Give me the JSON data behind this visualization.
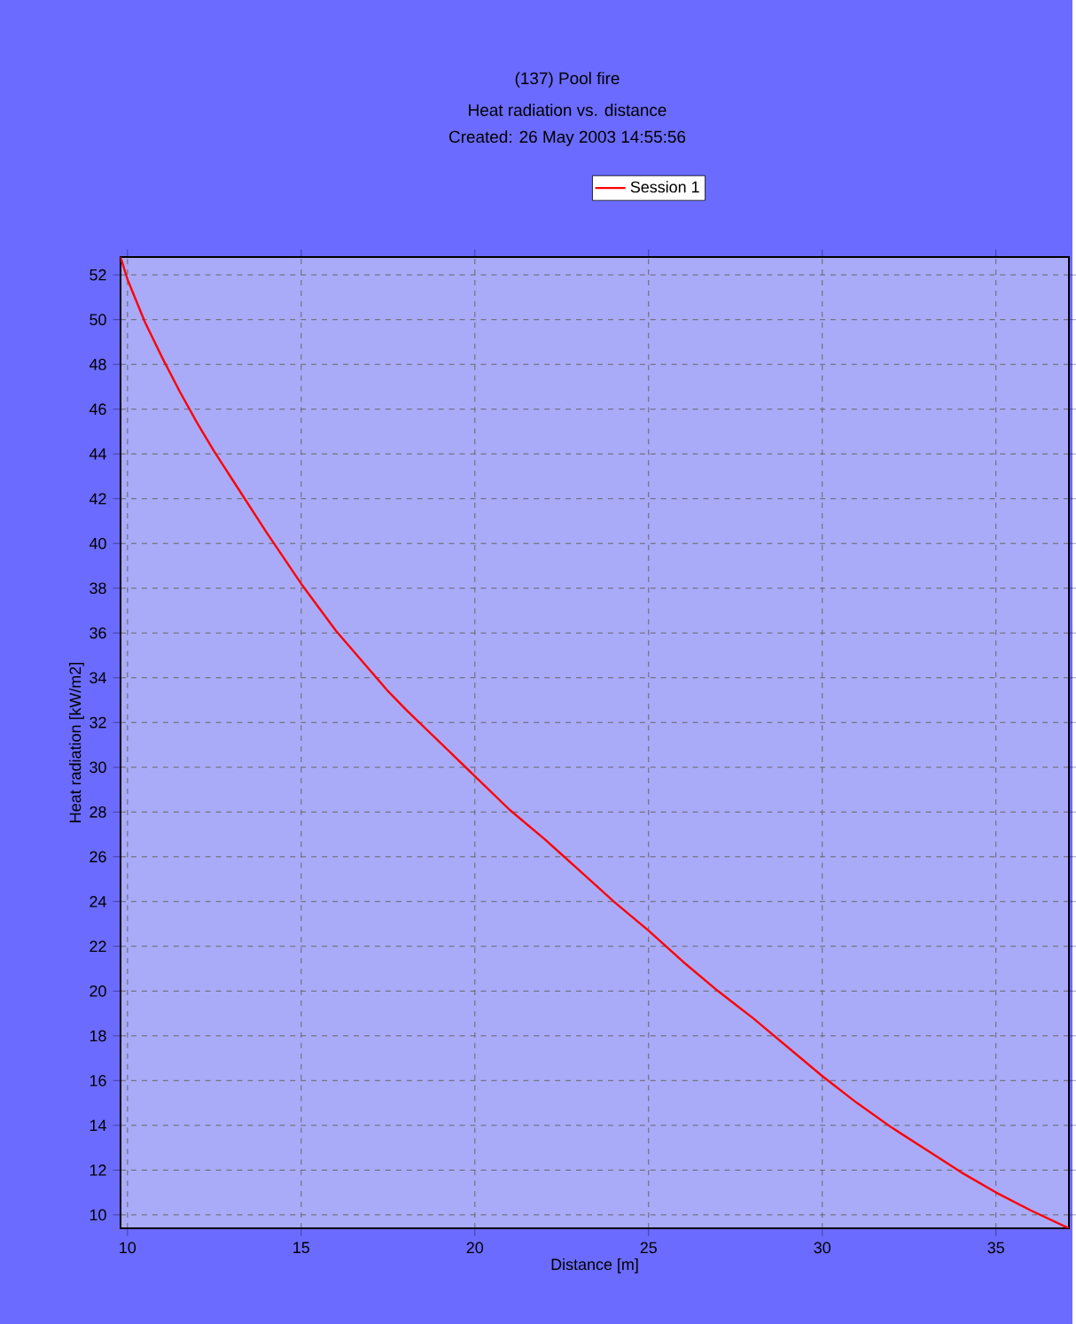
{
  "chart_data": {
    "type": "line",
    "title": "(137) Pool fire",
    "subtitle": "Heat radiation vs. distance",
    "annotations": [
      "Created: 26 May 2003  14:55:56"
    ],
    "xlabel": "Distance [m]",
    "ylabel": "Heat radiation [kW/m2]",
    "x": [
      9.8,
      10,
      10.5,
      11,
      11.5,
      12,
      12.5,
      13,
      14,
      15,
      16,
      17,
      17.5,
      18,
      19,
      20,
      21,
      22,
      22.5,
      23,
      24,
      25,
      26,
      27,
      27.5,
      28,
      29,
      30,
      31,
      32,
      32.5,
      33,
      34,
      35,
      36,
      37.1
    ],
    "series": [
      {
        "name": "Session 1",
        "color": "#ff0000",
        "values": [
          52.8,
          51.8,
          49.9,
          48.3,
          46.8,
          45.4,
          44.1,
          42.9,
          40.5,
          38.2,
          36.1,
          34.3,
          33.4,
          32.6,
          31.1,
          29.6,
          28.1,
          26.8,
          26.1,
          25.4,
          24.0,
          22.7,
          21.3,
          20.0,
          19.4,
          18.8,
          17.5,
          16.2,
          15.0,
          13.9,
          13.4,
          12.9,
          11.9,
          11.0,
          10.2,
          9.4
        ]
      }
    ],
    "xlim": [
      9.8,
      37.1
    ],
    "ylim": [
      9.4,
      52.8
    ],
    "xticks": [
      10,
      15,
      20,
      25,
      30,
      35
    ],
    "yticks": [
      10,
      12,
      14,
      16,
      18,
      20,
      22,
      24,
      26,
      28,
      30,
      32,
      34,
      36,
      38,
      40,
      42,
      44,
      46,
      48,
      50,
      52
    ],
    "grid": true,
    "legend": "top",
    "marker": "none",
    "line_style": "solid"
  }
}
